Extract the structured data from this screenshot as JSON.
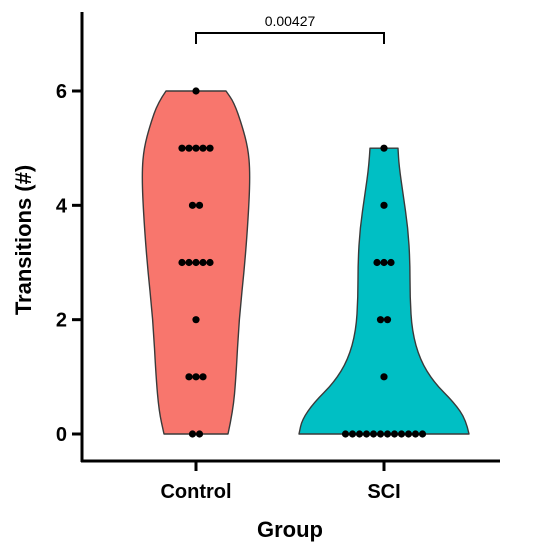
{
  "chart_data": {
    "type": "violin",
    "title": "",
    "xlabel": "Group",
    "ylabel": "Transitions (#)",
    "ylim": [
      -0.5,
      7.3
    ],
    "yticks": [
      0,
      2,
      4,
      6
    ],
    "categories": [
      "Control",
      "SCI"
    ],
    "colors": {
      "Control": "#f8766d",
      "SCI": "#00bfc4"
    },
    "points": {
      "Control": [
        6,
        5,
        5,
        5,
        5,
        5,
        4,
        4,
        3,
        3,
        3,
        3,
        3,
        2,
        1,
        1,
        1,
        0,
        0
      ],
      "SCI": [
        5,
        4,
        3,
        3,
        3,
        2,
        2,
        1,
        0,
        0,
        0,
        0,
        0,
        0,
        0,
        0,
        0,
        0,
        0,
        0
      ]
    },
    "comparison": {
      "label": "0.00427",
      "between": [
        "Control",
        "SCI"
      ]
    }
  }
}
